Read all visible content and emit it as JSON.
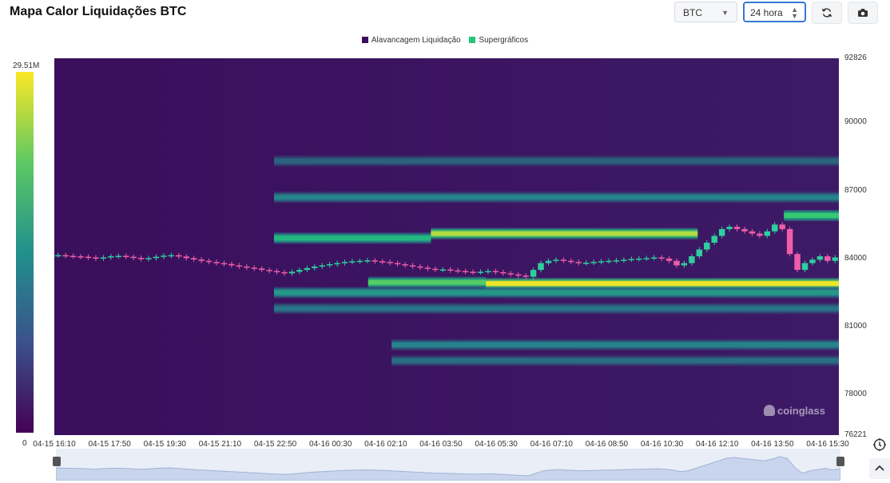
{
  "header": {
    "title": "Mapa Calor Liquidações BTC",
    "coin_select": "BTC",
    "range_select": "24 hora"
  },
  "icons": {
    "refresh": "refresh-icon",
    "camera": "camera-icon",
    "settings": "settings-icon",
    "collapse": "chevron-up-icon"
  },
  "legend": {
    "items": [
      {
        "label": "Alavancagem Liquidação",
        "color": "#3b0f57"
      },
      {
        "label": "Supergráficos",
        "color": "#22c77a"
      }
    ]
  },
  "colorbar": {
    "max_label": "29.51M",
    "min_label": "0"
  },
  "watermark": "coinglass",
  "chart_data": {
    "type": "heatmap",
    "title": "Mapa Calor Liquidações BTC",
    "y_ticks": [
      "92826",
      "90000",
      "87000",
      "84000",
      "81000",
      "78000",
      "76221"
    ],
    "ylim": [
      76221,
      92826
    ],
    "x_ticks": [
      "04-15 16:10",
      "04-15 17:50",
      "04-15 19:30",
      "04-15 21:10",
      "04-15 22:50",
      "04-16 00:30",
      "04-16 02:10",
      "04-16 03:50",
      "04-16 05:30",
      "04-16 07:10",
      "04-16 08:50",
      "04-16 10:30",
      "04-16 12:10",
      "04-16 13:50",
      "04-16 15:30"
    ],
    "color_scale": {
      "min": 0,
      "max_label": "29.51M",
      "colors": [
        "#3b0f57",
        "#26828e",
        "#22c77a",
        "#fde725"
      ]
    },
    "price_series": [
      84150,
      84120,
      84100,
      84080,
      84050,
      84000,
      84050,
      84100,
      84120,
      84080,
      84030,
      83980,
      84020,
      84080,
      84130,
      84150,
      84090,
      84020,
      83960,
      83900,
      83850,
      83800,
      83760,
      83700,
      83650,
      83600,
      83560,
      83500,
      83450,
      83400,
      83350,
      83420,
      83500,
      83580,
      83650,
      83700,
      83750,
      83800,
      83850,
      83880,
      83900,
      83920,
      83880,
      83850,
      83800,
      83750,
      83700,
      83650,
      83600,
      83550,
      83500,
      83520,
      83480,
      83450,
      83420,
      83400,
      83420,
      83450,
      83400,
      83350,
      83300,
      83250,
      83200,
      83500,
      83800,
      83900,
      83950,
      83900,
      83850,
      83800,
      83820,
      83850,
      83880,
      83900,
      83920,
      83950,
      83980,
      84000,
      84020,
      84050,
      84000,
      83900,
      83700,
      83800,
      84100,
      84400,
      84700,
      85000,
      85300,
      85400,
      85300,
      85200,
      85100,
      85000,
      85200,
      85500,
      85300,
      84200,
      83500,
      83800,
      83950,
      84100,
      83900,
      84050
    ],
    "liquidation_bands": [
      {
        "price": 82900,
        "intensity": 1.0,
        "start": 0.55,
        "end": 1.0
      },
      {
        "price": 82950,
        "intensity": 0.75,
        "start": 0.4,
        "end": 0.55
      },
      {
        "price": 82500,
        "intensity": 0.45,
        "start": 0.28,
        "end": 1.0
      },
      {
        "price": 85100,
        "intensity": 0.9,
        "start": 0.48,
        "end": 0.82
      },
      {
        "price": 84900,
        "intensity": 0.6,
        "start": 0.28,
        "end": 0.48
      },
      {
        "price": 85900,
        "intensity": 0.7,
        "start": 0.93,
        "end": 1.0
      },
      {
        "price": 86700,
        "intensity": 0.35,
        "start": 0.28,
        "end": 1.0
      },
      {
        "price": 80200,
        "intensity": 0.35,
        "start": 0.43,
        "end": 1.0
      },
      {
        "price": 79500,
        "intensity": 0.28,
        "start": 0.43,
        "end": 1.0
      },
      {
        "price": 81800,
        "intensity": 0.3,
        "start": 0.28,
        "end": 1.0
      },
      {
        "price": 88300,
        "intensity": 0.25,
        "start": 0.28,
        "end": 1.0
      }
    ]
  }
}
